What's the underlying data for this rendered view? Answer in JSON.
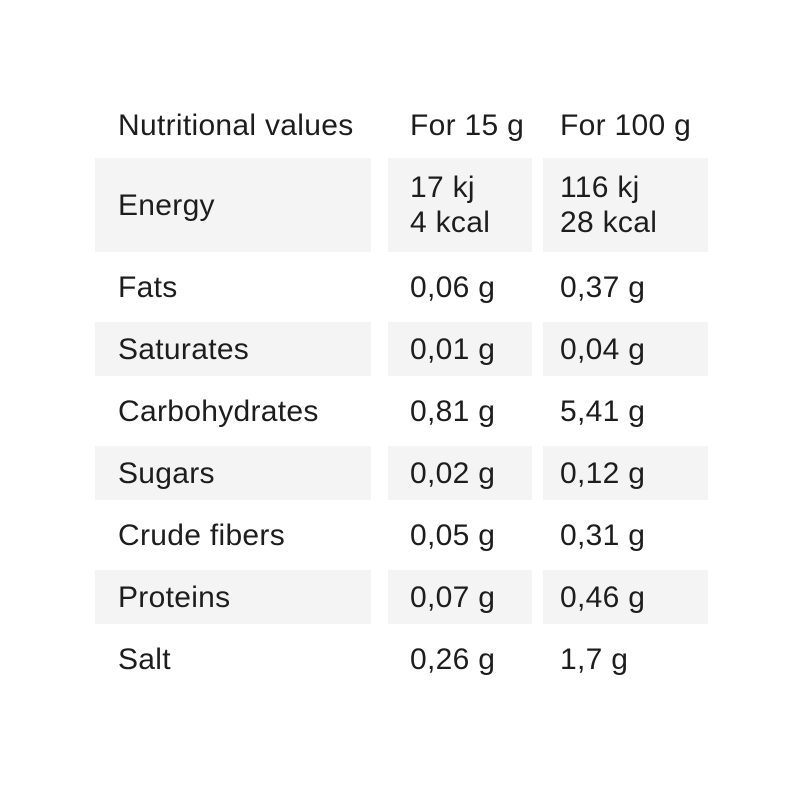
{
  "colors": {
    "text": "#1d1d1d",
    "row_alt_background": "#f4f4f4",
    "page_background": "#ffffff"
  },
  "table": {
    "header": {
      "label_column": "Nutritional values",
      "per_15g_column": "For 15 g",
      "per_100g_column": "For 100 g"
    },
    "rows": [
      {
        "label": "Energy",
        "per15": [
          "17 kj",
          "4 kcal"
        ],
        "per100": [
          "116 kj",
          "28 kcal"
        ],
        "shaded": true
      },
      {
        "label": "Fats",
        "per15": [
          "0,06 g"
        ],
        "per100": [
          "0,37 g"
        ],
        "shaded": false
      },
      {
        "label": "Saturates",
        "per15": [
          "0,01 g"
        ],
        "per100": [
          "0,04 g"
        ],
        "shaded": true
      },
      {
        "label": "Carbohydrates",
        "per15": [
          "0,81 g"
        ],
        "per100": [
          "5,41 g"
        ],
        "shaded": false
      },
      {
        "label": "Sugars",
        "per15": [
          "0,02 g"
        ],
        "per100": [
          "0,12 g"
        ],
        "shaded": true
      },
      {
        "label": "Crude fibers",
        "per15": [
          "0,05 g"
        ],
        "per100": [
          "0,31 g"
        ],
        "shaded": false
      },
      {
        "label": "Proteins",
        "per15": [
          "0,07 g"
        ],
        "per100": [
          "0,46 g"
        ],
        "shaded": true
      },
      {
        "label": "Salt",
        "per15": [
          "0,26 g"
        ],
        "per100": [
          "1,7 g"
        ],
        "shaded": false
      }
    ]
  }
}
